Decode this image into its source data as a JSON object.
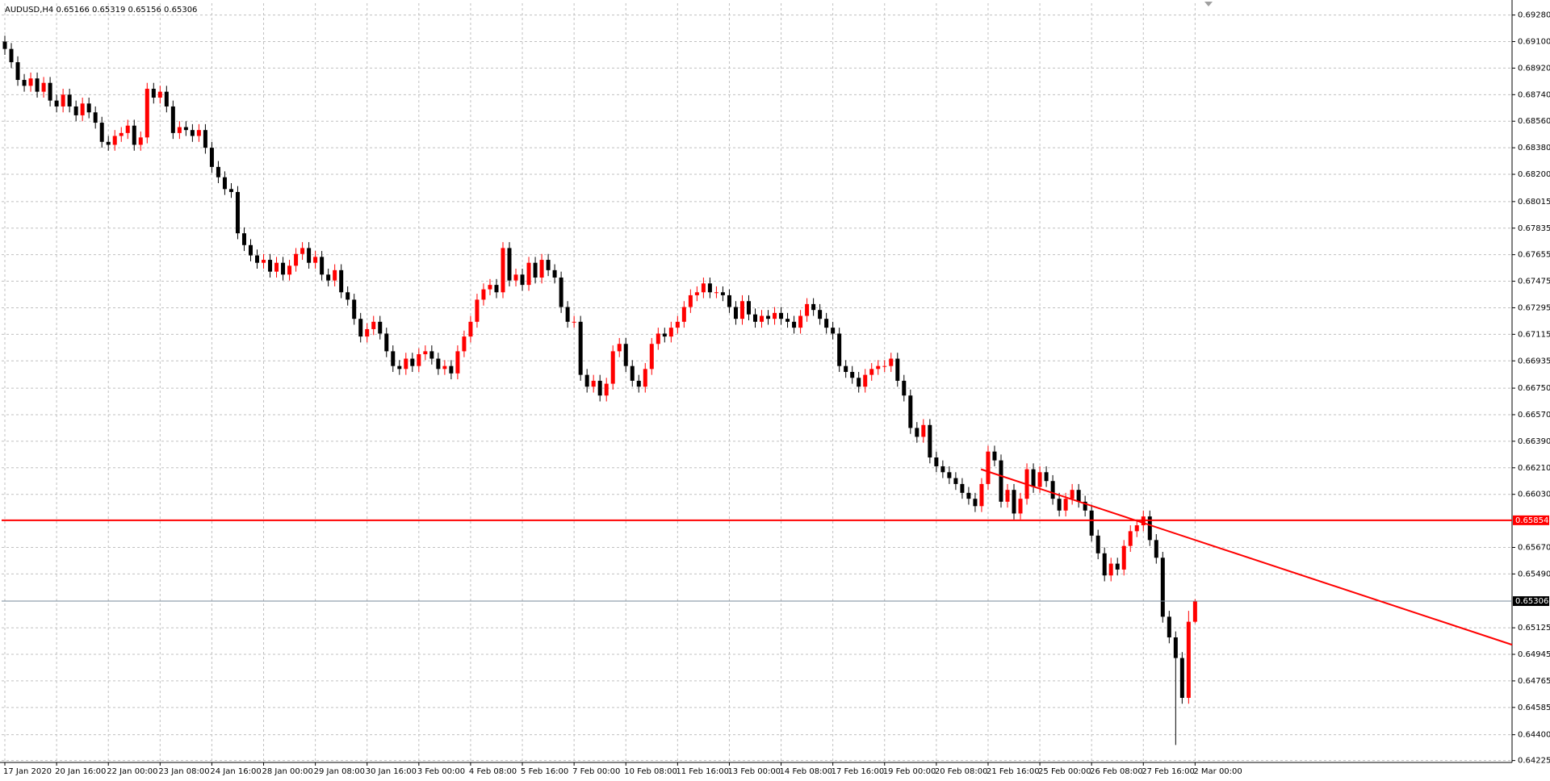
{
  "chart_data": {
    "type": "candlestick",
    "title": "AUDUSD,H4  0.65166 0.65319 0.65156 0.65306",
    "up_color": "#ff0000",
    "down_color": "#000000",
    "grid": true,
    "xlim": [
      -0.5,
      233
    ],
    "ylim": [
      0.64212,
      0.6936
    ],
    "yticks": [
      {
        "value": 0.6928,
        "label": "0.69280"
      },
      {
        "value": 0.691,
        "label": "0.69100"
      },
      {
        "value": 0.6892,
        "label": "0.68920"
      },
      {
        "value": 0.6874,
        "label": "0.68740"
      },
      {
        "value": 0.6856,
        "label": "0.68560"
      },
      {
        "value": 0.6838,
        "label": "0.68380"
      },
      {
        "value": 0.682,
        "label": "0.68200"
      },
      {
        "value": 0.68015,
        "label": "0.68015"
      },
      {
        "value": 0.67835,
        "label": "0.67835"
      },
      {
        "value": 0.67655,
        "label": "0.67655"
      },
      {
        "value": 0.67475,
        "label": "0.67475"
      },
      {
        "value": 0.67295,
        "label": "0.67295"
      },
      {
        "value": 0.67115,
        "label": "0.67115"
      },
      {
        "value": 0.66935,
        "label": "0.66935"
      },
      {
        "value": 0.6675,
        "label": "0.66750"
      },
      {
        "value": 0.6657,
        "label": "0.66570"
      },
      {
        "value": 0.6639,
        "label": "0.66390"
      },
      {
        "value": 0.6621,
        "label": "0.66210"
      },
      {
        "value": 0.6603,
        "label": "0.66030"
      },
      {
        "value": 0.6567,
        "label": "0.65670"
      },
      {
        "value": 0.6549,
        "label": "0.65490"
      },
      {
        "value": 0.65125,
        "label": "0.65125"
      },
      {
        "value": 0.64945,
        "label": "0.64945"
      },
      {
        "value": 0.64765,
        "label": "0.64765"
      },
      {
        "value": 0.64585,
        "label": "0.64585"
      },
      {
        "value": 0.644,
        "label": "0.64400"
      },
      {
        "value": 0.64225,
        "label": "0.64225"
      }
    ],
    "xticks": [
      {
        "value": 0,
        "label": "17 Jan 2020"
      },
      {
        "value": 8,
        "label": "20 Jan 16:00"
      },
      {
        "value": 16,
        "label": "22 Jan 00:00"
      },
      {
        "value": 24,
        "label": "23 Jan 08:00"
      },
      {
        "value": 32,
        "label": "24 Jan 16:00"
      },
      {
        "value": 40,
        "label": "28 Jan 00:00"
      },
      {
        "value": 48,
        "label": "29 Jan 08:00"
      },
      {
        "value": 56,
        "label": "30 Jan 16:00"
      },
      {
        "value": 64,
        "label": "3 Feb 00:00"
      },
      {
        "value": 72,
        "label": "4 Feb 08:00"
      },
      {
        "value": 80,
        "label": "5 Feb 16:00"
      },
      {
        "value": 88,
        "label": "7 Feb 00:00"
      },
      {
        "value": 96,
        "label": "10 Feb 08:00"
      },
      {
        "value": 104,
        "label": "11 Feb 16:00"
      },
      {
        "value": 112,
        "label": "13 Feb 00:00"
      },
      {
        "value": 120,
        "label": "14 Feb 08:00"
      },
      {
        "value": 128,
        "label": "17 Feb 16:00"
      },
      {
        "value": 136,
        "label": "19 Feb 00:00"
      },
      {
        "value": 144,
        "label": "20 Feb 08:00"
      },
      {
        "value": 152,
        "label": "21 Feb 16:00"
      },
      {
        "value": 160,
        "label": "25 Feb 00:00"
      },
      {
        "value": 168,
        "label": "26 Feb 08:00"
      },
      {
        "value": 176,
        "label": "27 Feb 16:00"
      },
      {
        "value": 184,
        "label": "2 Mar 00:00"
      }
    ],
    "level_line": {
      "value": 0.65854,
      "label": "0.65854",
      "color": "#ff0000"
    },
    "current_price": {
      "value": 0.65306,
      "label": "0.65306",
      "color": "#778899"
    },
    "trendline": {
      "x": [
        150.9,
        233
      ],
      "y": [
        0.662,
        0.6501
      ],
      "color": "#ff0000"
    },
    "open": [
      0.691,
      0.6905,
      0.6896,
      0.6884,
      0.688,
      0.6885,
      0.6876,
      0.6882,
      0.687,
      0.6866,
      0.6874,
      0.6866,
      0.686,
      0.6868,
      0.6862,
      0.6855,
      0.6842,
      0.684,
      0.6846,
      0.6848,
      0.6853,
      0.684,
      0.6845,
      0.6878,
      0.6872,
      0.6876,
      0.6866,
      0.6848,
      0.6852,
      0.685,
      0.6846,
      0.685,
      0.6838,
      0.6825,
      0.6818,
      0.681,
      0.6808,
      0.678,
      0.6772,
      0.6765,
      0.676,
      0.6762,
      0.6754,
      0.676,
      0.6752,
      0.6758,
      0.6766,
      0.677,
      0.676,
      0.6764,
      0.6752,
      0.6748,
      0.6755,
      0.674,
      0.6735,
      0.6722,
      0.671,
      0.6715,
      0.672,
      0.6712,
      0.67,
      0.669,
      0.6688,
      0.6695,
      0.669,
      0.6698,
      0.67,
      0.6695,
      0.6688,
      0.669,
      0.6685,
      0.67,
      0.671,
      0.672,
      0.6735,
      0.6742,
      0.6745,
      0.674,
      0.677,
      0.6748,
      0.6752,
      0.6745,
      0.676,
      0.675,
      0.6762,
      0.6755,
      0.675,
      0.673,
      0.672,
      0.672,
      0.6684,
      0.6676,
      0.668,
      0.667,
      0.6678,
      0.67,
      0.6705,
      0.669,
      0.668,
      0.6676,
      0.6688,
      0.6705,
      0.6712,
      0.671,
      0.6716,
      0.672,
      0.673,
      0.6738,
      0.674,
      0.6746,
      0.674,
      0.674,
      0.6738,
      0.673,
      0.6722,
      0.6734,
      0.6725,
      0.672,
      0.6724,
      0.6722,
      0.6726,
      0.6722,
      0.672,
      0.6716,
      0.6724,
      0.6732,
      0.6728,
      0.6722,
      0.6716,
      0.6712,
      0.669,
      0.6686,
      0.6682,
      0.6676,
      0.6684,
      0.6688,
      0.669,
      0.669,
      0.6695,
      0.668,
      0.667,
      0.6648,
      0.6642,
      0.665,
      0.6628,
      0.6622,
      0.6618,
      0.6614,
      0.661,
      0.6604,
      0.66,
      0.6595,
      0.661,
      0.6632,
      0.6626,
      0.6598,
      0.6606,
      0.659,
      0.66,
      0.662,
      0.6608,
      0.6618,
      0.6612,
      0.66,
      0.6592,
      0.66,
      0.6606,
      0.6598,
      0.6592,
      0.6575,
      0.6563,
      0.6548,
      0.6556,
      0.6552,
      0.6568,
      0.6578,
      0.6582,
      0.6588,
      0.6572,
      0.656,
      0.652,
      0.6506,
      0.6492,
      0.6465,
      0.65166
    ],
    "high": [
      0.6914,
      0.6909,
      0.69,
      0.6888,
      0.6889,
      0.6889,
      0.6886,
      0.6886,
      0.6874,
      0.6878,
      0.6878,
      0.687,
      0.6872,
      0.6872,
      0.6866,
      0.6859,
      0.6846,
      0.685,
      0.6852,
      0.6857,
      0.6857,
      0.6849,
      0.6882,
      0.6882,
      0.688,
      0.688,
      0.687,
      0.6856,
      0.6856,
      0.6854,
      0.6854,
      0.6854,
      0.6842,
      0.6829,
      0.6822,
      0.6814,
      0.6812,
      0.6784,
      0.6776,
      0.6769,
      0.6766,
      0.6766,
      0.6764,
      0.6764,
      0.6762,
      0.677,
      0.6774,
      0.6774,
      0.6768,
      0.6768,
      0.6756,
      0.6759,
      0.6759,
      0.6744,
      0.6739,
      0.6726,
      0.6719,
      0.6724,
      0.6724,
      0.6716,
      0.6704,
      0.6694,
      0.6699,
      0.6699,
      0.6702,
      0.6704,
      0.6704,
      0.6699,
      0.6694,
      0.6694,
      0.6704,
      0.6714,
      0.6724,
      0.6739,
      0.6746,
      0.6749,
      0.6749,
      0.6774,
      0.6774,
      0.6756,
      0.6756,
      0.6764,
      0.6764,
      0.6766,
      0.6766,
      0.6759,
      0.6754,
      0.6734,
      0.6724,
      0.6724,
      0.6688,
      0.6684,
      0.6684,
      0.6682,
      0.6704,
      0.6709,
      0.6709,
      0.6694,
      0.6684,
      0.6692,
      0.6709,
      0.6716,
      0.6716,
      0.672,
      0.6724,
      0.6734,
      0.6742,
      0.6744,
      0.675,
      0.675,
      0.6744,
      0.6744,
      0.6742,
      0.6734,
      0.6738,
      0.6738,
      0.6729,
      0.6728,
      0.6728,
      0.673,
      0.673,
      0.6726,
      0.6724,
      0.6728,
      0.6736,
      0.6736,
      0.6732,
      0.6726,
      0.672,
      0.6716,
      0.6694,
      0.669,
      0.6686,
      0.6688,
      0.6692,
      0.6694,
      0.6694,
      0.6699,
      0.6699,
      0.6684,
      0.6674,
      0.6652,
      0.6654,
      0.6654,
      0.6632,
      0.6626,
      0.6622,
      0.6618,
      0.6614,
      0.6608,
      0.6604,
      0.6614,
      0.6636,
      0.6636,
      0.663,
      0.661,
      0.661,
      0.6604,
      0.6624,
      0.6624,
      0.6622,
      0.6622,
      0.6616,
      0.6604,
      0.6604,
      0.661,
      0.661,
      0.6602,
      0.6596,
      0.6579,
      0.6567,
      0.656,
      0.656,
      0.6572,
      0.6582,
      0.6586,
      0.6592,
      0.6592,
      0.6576,
      0.6564,
      0.6524,
      0.651,
      0.6496,
      0.6524,
      0.65319
    ],
    "low": [
      0.6901,
      0.6892,
      0.688,
      0.6876,
      0.6876,
      0.6872,
      0.6872,
      0.6866,
      0.6862,
      0.6862,
      0.6862,
      0.6856,
      0.6856,
      0.6858,
      0.6851,
      0.6838,
      0.6836,
      0.6836,
      0.6842,
      0.6844,
      0.6836,
      0.6836,
      0.6841,
      0.6868,
      0.6868,
      0.6862,
      0.6844,
      0.6844,
      0.6846,
      0.6842,
      0.6842,
      0.6834,
      0.6821,
      0.6814,
      0.6806,
      0.6804,
      0.6776,
      0.6768,
      0.6761,
      0.6756,
      0.6756,
      0.675,
      0.675,
      0.6748,
      0.6748,
      0.6754,
      0.6762,
      0.6756,
      0.6756,
      0.6748,
      0.6744,
      0.6744,
      0.6736,
      0.6731,
      0.6718,
      0.6706,
      0.6706,
      0.6711,
      0.6708,
      0.6696,
      0.6686,
      0.6684,
      0.6684,
      0.6686,
      0.6686,
      0.6694,
      0.6691,
      0.6684,
      0.6684,
      0.6681,
      0.6681,
      0.6696,
      0.6706,
      0.6716,
      0.6731,
      0.6738,
      0.6736,
      0.6736,
      0.6744,
      0.6744,
      0.6741,
      0.6741,
      0.6746,
      0.6746,
      0.6751,
      0.6746,
      0.6726,
      0.6716,
      0.6716,
      0.668,
      0.6672,
      0.6672,
      0.6666,
      0.6666,
      0.6674,
      0.6696,
      0.6686,
      0.6676,
      0.6672,
      0.6672,
      0.6684,
      0.6701,
      0.6706,
      0.6706,
      0.6712,
      0.6716,
      0.6726,
      0.6734,
      0.6736,
      0.6736,
      0.6736,
      0.6734,
      0.6726,
      0.6718,
      0.6718,
      0.6721,
      0.6716,
      0.6716,
      0.6718,
      0.6718,
      0.6718,
      0.6716,
      0.6712,
      0.6712,
      0.672,
      0.6724,
      0.6718,
      0.6712,
      0.6708,
      0.6686,
      0.6682,
      0.6678,
      0.6672,
      0.6672,
      0.668,
      0.6684,
      0.6686,
      0.6686,
      0.6676,
      0.6666,
      0.6644,
      0.6638,
      0.6638,
      0.6624,
      0.6618,
      0.6614,
      0.661,
      0.6606,
      0.66,
      0.6596,
      0.6591,
      0.6591,
      0.6606,
      0.6622,
      0.6594,
      0.6594,
      0.6586,
      0.6586,
      0.6596,
      0.6604,
      0.6604,
      0.6608,
      0.6596,
      0.6588,
      0.6588,
      0.6596,
      0.6594,
      0.6588,
      0.6571,
      0.6559,
      0.6544,
      0.6544,
      0.6548,
      0.6548,
      0.6564,
      0.6574,
      0.6578,
      0.6568,
      0.6556,
      0.6516,
      0.6502,
      0.6433,
      0.6461,
      0.6461,
      0.65156
    ],
    "close": [
      0.6905,
      0.6896,
      0.6884,
      0.688,
      0.6885,
      0.6876,
      0.6882,
      0.687,
      0.6866,
      0.6874,
      0.6866,
      0.686,
      0.6868,
      0.6862,
      0.6855,
      0.6842,
      0.684,
      0.6846,
      0.6848,
      0.6853,
      0.684,
      0.6845,
      0.6878,
      0.6872,
      0.6876,
      0.6866,
      0.6848,
      0.6852,
      0.685,
      0.6846,
      0.685,
      0.6838,
      0.6825,
      0.6818,
      0.681,
      0.6808,
      0.678,
      0.6772,
      0.6765,
      0.676,
      0.6762,
      0.6754,
      0.676,
      0.6752,
      0.6758,
      0.6766,
      0.677,
      0.676,
      0.6764,
      0.6752,
      0.6748,
      0.6755,
      0.674,
      0.6735,
      0.6722,
      0.671,
      0.6715,
      0.672,
      0.6712,
      0.67,
      0.669,
      0.6688,
      0.6695,
      0.669,
      0.6698,
      0.67,
      0.6695,
      0.6688,
      0.669,
      0.6685,
      0.67,
      0.671,
      0.672,
      0.6735,
      0.6742,
      0.6745,
      0.674,
      0.677,
      0.6748,
      0.6752,
      0.6745,
      0.676,
      0.675,
      0.6762,
      0.6755,
      0.675,
      0.673,
      0.672,
      0.672,
      0.6684,
      0.6676,
      0.668,
      0.667,
      0.6678,
      0.67,
      0.6705,
      0.669,
      0.668,
      0.6676,
      0.6688,
      0.6705,
      0.6712,
      0.671,
      0.6716,
      0.672,
      0.673,
      0.6738,
      0.674,
      0.6746,
      0.674,
      0.674,
      0.6738,
      0.673,
      0.6722,
      0.6734,
      0.6725,
      0.672,
      0.6724,
      0.6722,
      0.6726,
      0.6722,
      0.672,
      0.6716,
      0.6724,
      0.6732,
      0.6728,
      0.6722,
      0.6716,
      0.6712,
      0.669,
      0.6686,
      0.6682,
      0.6676,
      0.6684,
      0.6688,
      0.669,
      0.669,
      0.6695,
      0.668,
      0.667,
      0.6648,
      0.6642,
      0.665,
      0.6628,
      0.6622,
      0.6618,
      0.6614,
      0.661,
      0.6604,
      0.66,
      0.6595,
      0.661,
      0.6632,
      0.6626,
      0.6598,
      0.6606,
      0.659,
      0.66,
      0.662,
      0.6608,
      0.6618,
      0.6612,
      0.66,
      0.6592,
      0.66,
      0.6606,
      0.6598,
      0.6592,
      0.6575,
      0.6563,
      0.6548,
      0.6556,
      0.6552,
      0.6568,
      0.6578,
      0.6582,
      0.6588,
      0.6572,
      0.656,
      0.652,
      0.6506,
      0.6492,
      0.6465,
      0.65166,
      0.65306
    ]
  }
}
